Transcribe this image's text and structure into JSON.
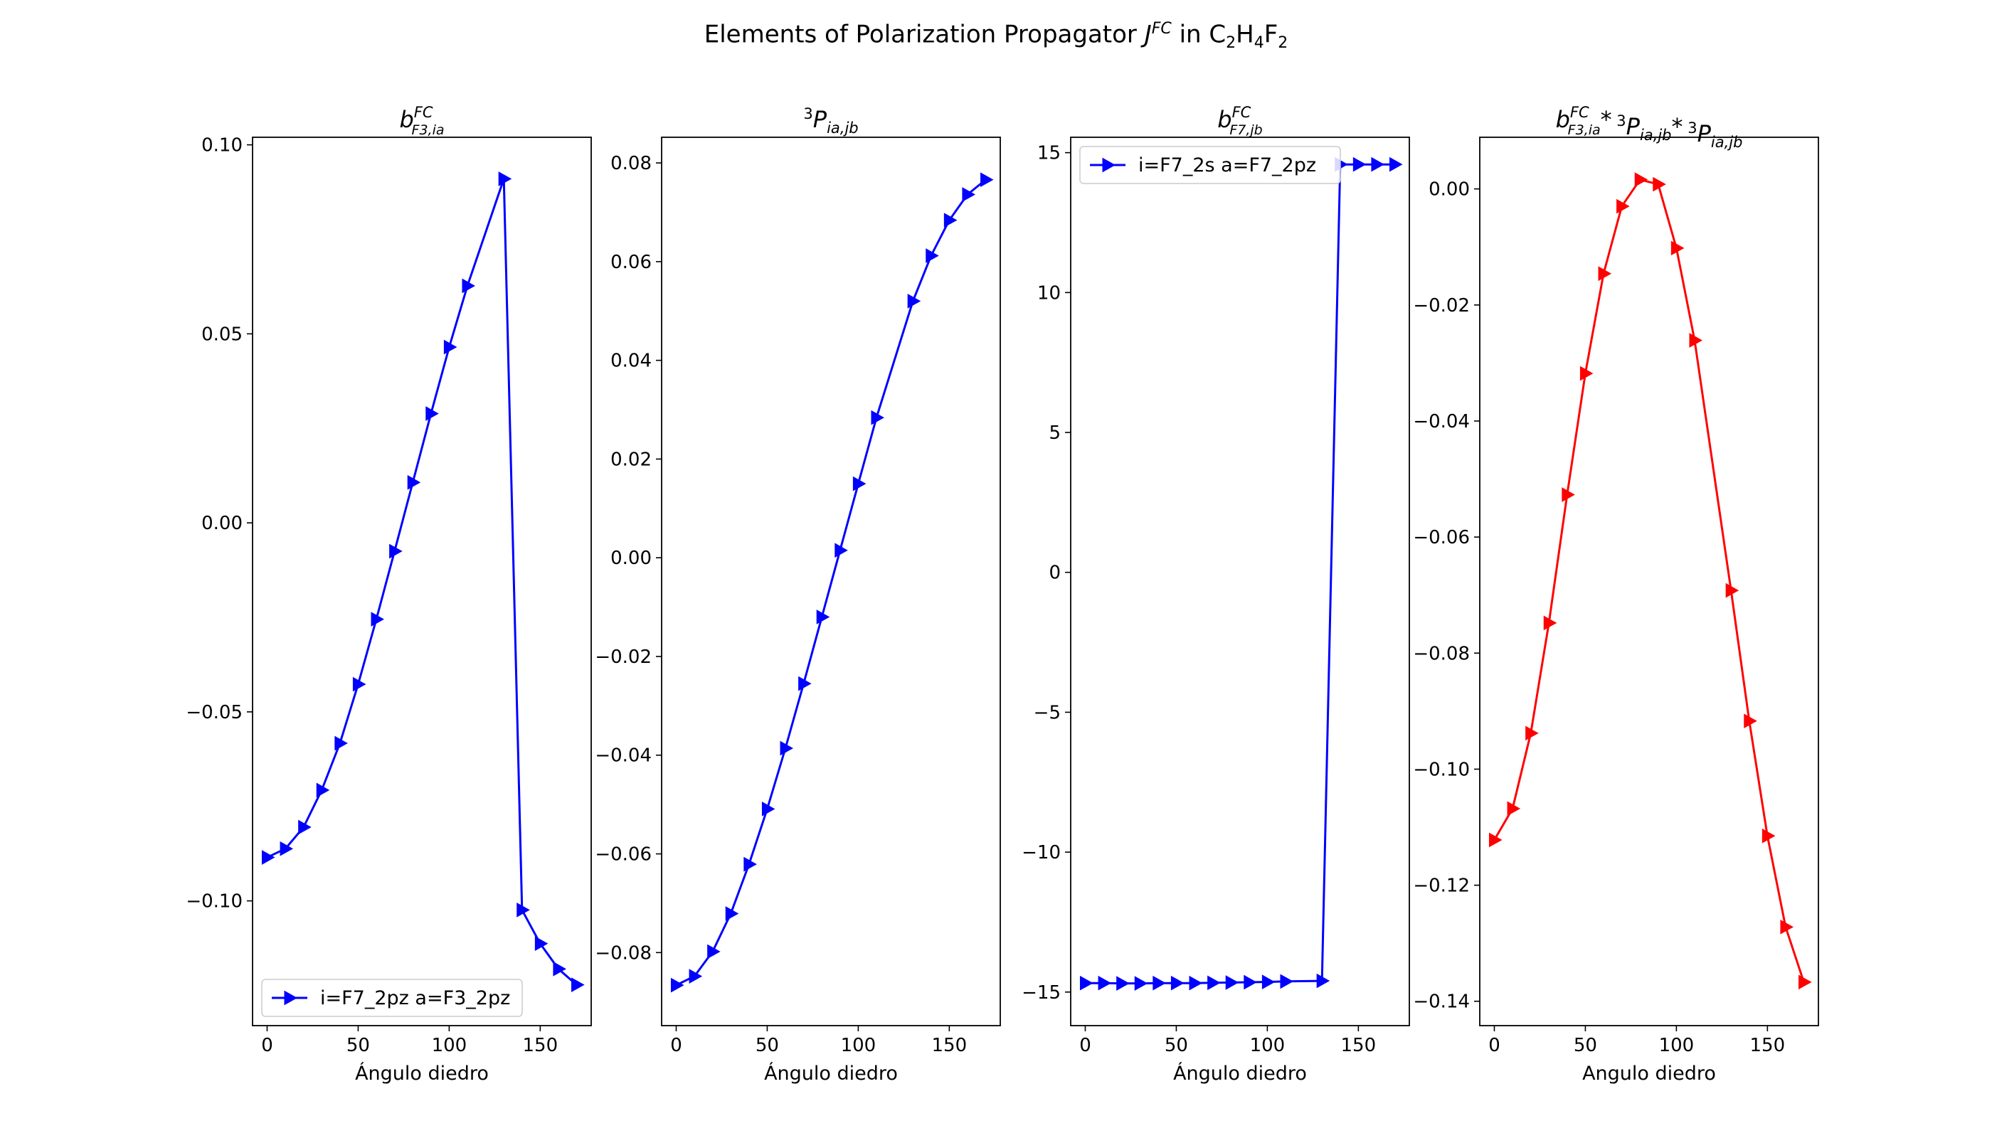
{
  "figure": {
    "title_parts": {
      "pre": "Elements of Polarization Propagator ",
      "J": "J",
      "FC": "FC",
      "in": " in C",
      "sub2a": "2",
      "H": "H",
      "sub4": "4",
      "F": "F",
      "sub2b": "2"
    }
  },
  "chart_data": [
    {
      "type": "line",
      "title": "b_{F3,ia}^{FC}",
      "title_parts": {
        "main": "b",
        "sup": "FC",
        "sub": "F3,ia"
      },
      "xlabel": "Ángulo diedro",
      "ylabel": "",
      "xlim": [
        -8,
        178
      ],
      "ylim": [
        -0.133,
        0.102
      ],
      "xticks": [
        0,
        50,
        100,
        150
      ],
      "yticks": [
        -0.1,
        -0.05,
        0.0,
        0.05,
        0.1
      ],
      "ytick_labels": [
        "−0.10",
        "−0.05",
        "0.00",
        "0.05",
        "0.10"
      ],
      "legend": {
        "label": "i=F7_2pz a=F3_2pz",
        "position": "lower-left"
      },
      "color": "#0000ff",
      "marker": "triangle-right",
      "series": [
        {
          "name": "i=F7_2pz a=F3_2pz",
          "x": [
            0,
            10,
            20,
            30,
            40,
            50,
            60,
            70,
            80,
            90,
            100,
            110,
            130,
            140,
            150,
            160,
            170
          ],
          "y": [
            -0.0885,
            -0.0862,
            -0.0805,
            -0.0707,
            -0.0583,
            -0.0427,
            -0.0255,
            -0.0075,
            0.0107,
            0.0289,
            0.0465,
            0.0627,
            0.091,
            -0.1024,
            -0.1113,
            -0.118,
            -0.1222
          ]
        }
      ]
    },
    {
      "type": "line",
      "title": "3P_{ia,jb}",
      "title_parts": {
        "pre": "3",
        "main": "P",
        "sub": "ia,jb"
      },
      "xlabel": "Ángulo diedro",
      "ylabel": "",
      "xlim": [
        -8,
        178
      ],
      "ylim": [
        -0.0948,
        0.0852
      ],
      "xticks": [
        0,
        50,
        100,
        150
      ],
      "yticks": [
        -0.08,
        -0.06,
        -0.04,
        -0.02,
        0.0,
        0.02,
        0.04,
        0.06,
        0.08
      ],
      "ytick_labels": [
        "−0.08",
        "−0.06",
        "−0.04",
        "−0.02",
        "0.00",
        "0.02",
        "0.04",
        "0.06",
        "0.08"
      ],
      "color": "#0000ff",
      "marker": "triangle-right",
      "series": [
        {
          "x": [
            0,
            10,
            20,
            30,
            40,
            50,
            60,
            70,
            80,
            90,
            100,
            110,
            130,
            140,
            150,
            160,
            170
          ],
          "y": [
            -0.0866,
            -0.0848,
            -0.0798,
            -0.0721,
            -0.0621,
            -0.0509,
            -0.0386,
            -0.0255,
            -0.012,
            0.0015,
            0.015,
            0.0284,
            0.052,
            0.0612,
            0.0684,
            0.0736,
            0.0766
          ]
        }
      ]
    },
    {
      "type": "line",
      "title": "b_{F7,jb}^{FC}",
      "title_parts": {
        "main": "b",
        "sup": "FC",
        "sub": "F7,jb"
      },
      "xlabel": "Ángulo diedro",
      "ylabel": "",
      "xlim": [
        -8,
        178
      ],
      "ylim": [
        -16.2,
        15.55
      ],
      "xticks": [
        0,
        50,
        100,
        150
      ],
      "yticks": [
        -15,
        -10,
        -5,
        0,
        5,
        10,
        15
      ],
      "ytick_labels": [
        "−15",
        "−10",
        "−5",
        "0",
        "5",
        "10",
        "15"
      ],
      "legend": {
        "label": "i=F7_2s a=F7_2pz",
        "position": "upper-left"
      },
      "color": "#0000ff",
      "marker": "triangle-right",
      "series": [
        {
          "name": "i=F7_2s a=F7_2pz",
          "x": [
            0,
            10,
            20,
            30,
            40,
            50,
            60,
            70,
            80,
            90,
            100,
            110,
            130,
            140,
            150,
            160,
            170
          ],
          "y": [
            -14.68,
            -14.68,
            -14.69,
            -14.69,
            -14.68,
            -14.68,
            -14.68,
            -14.67,
            -14.66,
            -14.65,
            -14.64,
            -14.62,
            -14.6,
            14.58,
            14.58,
            14.58,
            14.58
          ]
        }
      ]
    },
    {
      "type": "line",
      "title": "b_{F3,ia}^{FC} * 3P_{ia,jb} * 3P_{ia,jb}",
      "title_parts": {
        "main": "b",
        "sup": "FC",
        "sub": "F3,ia",
        "star": "*",
        "pre": "3",
        "p": "P",
        "psub": "ia,jb"
      },
      "xlabel": "Angulo diedro",
      "ylabel": "",
      "xlim": [
        -8,
        178
      ],
      "ylim": [
        -0.1442,
        0.0089
      ],
      "xticks": [
        0,
        50,
        100,
        150
      ],
      "yticks": [
        -0.14,
        -0.12,
        -0.1,
        -0.08,
        -0.06,
        -0.04,
        -0.02,
        0.0
      ],
      "ytick_labels": [
        "−0.14",
        "−0.12",
        "−0.10",
        "−0.08",
        "−0.06",
        "−0.04",
        "−0.02",
        "0.00"
      ],
      "color": "#ff0000",
      "marker": "triangle-right",
      "series": [
        {
          "x": [
            0,
            10,
            20,
            30,
            40,
            50,
            60,
            70,
            80,
            90,
            100,
            110,
            130,
            140,
            150,
            160,
            170
          ],
          "y": [
            -0.1122,
            -0.1068,
            -0.0938,
            -0.0748,
            -0.0527,
            -0.0318,
            -0.0146,
            -0.003,
            0.0016,
            0.0008,
            -0.0102,
            -0.0261,
            -0.0692,
            -0.0917,
            -0.1115,
            -0.1272,
            -0.1367
          ]
        }
      ]
    }
  ]
}
